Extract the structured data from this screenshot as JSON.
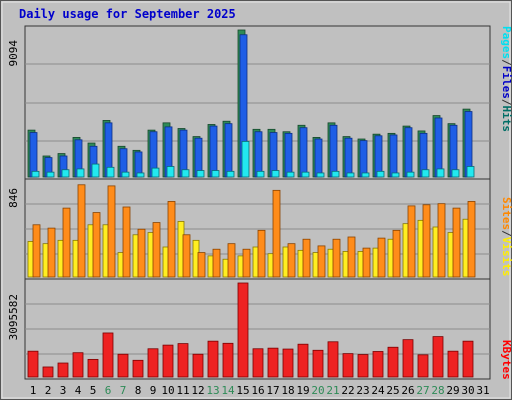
{
  "chart_data": {
    "type": "bar",
    "title": "Daily usage for September 2025",
    "days": [
      "1",
      "2",
      "3",
      "4",
      "5",
      "6",
      "7",
      "8",
      "9",
      "10",
      "11",
      "12",
      "13",
      "14",
      "15",
      "16",
      "17",
      "18",
      "19",
      "20",
      "21",
      "22",
      "23",
      "24",
      "25",
      "26",
      "27",
      "28",
      "29",
      "30",
      "31"
    ],
    "weekend_days": [
      "6",
      "7",
      "13",
      "14",
      "20",
      "21",
      "27",
      "28"
    ],
    "panels": [
      {
        "name": "hits-files-pages",
        "ymax_label": "9094",
        "ymax": 9094,
        "legend": [
          "Pages",
          "/",
          "Files",
          "/",
          "Hits"
        ],
        "legend_colors": [
          "#00e0f0",
          "#333333",
          "#0000c8",
          "#333333",
          "#006e66"
        ],
        "series": [
          {
            "name": "Hits",
            "color": "#2e8b57",
            "values": [
              2900,
              1300,
              1450,
              2450,
              2100,
              3500,
              1900,
              1650,
              2900,
              3350,
              3000,
              2500,
              3250,
              3450,
              9094,
              2950,
              2950,
              2800,
              3200,
              2450,
              3350,
              2500,
              2350,
              2650,
              2700,
              3150,
              2850,
              3800,
              3300,
              4200
            ]
          },
          {
            "name": "Files",
            "color": "#1f5ee6",
            "values": [
              2750,
              1200,
              1300,
              2300,
              1900,
              3350,
              1750,
              1550,
              2800,
              3100,
              2900,
              2400,
              3150,
              3300,
              8800,
              2800,
              2750,
              2700,
              3050,
              2350,
              3200,
              2400,
              2250,
              2550,
              2600,
              3050,
              2700,
              3650,
              3200,
              4050
            ]
          },
          {
            "name": "Pages",
            "color": "#22e8f0",
            "values": [
              350,
              300,
              450,
              500,
              800,
              600,
              300,
              250,
              550,
              650,
              450,
              400,
              400,
              350,
              2200,
              350,
              400,
              300,
              300,
              250,
              350,
              250,
              250,
              350,
              250,
              300,
              450,
              500,
              450,
              650
            ]
          }
        ]
      },
      {
        "name": "visits-sites",
        "ymax_label": "846",
        "ymax": 846,
        "legend": [
          "Sites",
          "/",
          "Visits"
        ],
        "legend_colors": [
          "#ff8800",
          "#333333",
          "#ffee00"
        ],
        "series": [
          {
            "name": "Visits",
            "color": "#ffee22",
            "values": [
              320,
              300,
              330,
              330,
              470,
              470,
              220,
              380,
              400,
              270,
              500,
              330,
              190,
              160,
              190,
              270,
              210,
              270,
              240,
              220,
              250,
              230,
              230,
              260,
              340,
              480,
              510,
              450,
              400,
              520
            ]
          },
          {
            "name": "Sites",
            "color": "#ff8c1a",
            "values": [
              470,
              440,
              620,
              830,
              580,
              820,
              630,
              430,
              490,
              680,
              380,
              220,
              250,
              300,
              250,
              420,
              780,
              300,
              340,
              280,
              340,
              360,
              260,
              350,
              420,
              640,
              650,
              660,
              620,
              680
            ]
          }
        ]
      },
      {
        "name": "kbytes",
        "ymax_label": "3095582",
        "ymax": 3095582,
        "legend": [
          "KBytes"
        ],
        "legend_colors": [
          "#ff0000"
        ],
        "series": [
          {
            "name": "KBytes",
            "color": "#ee2222",
            "values": [
              850000,
              330000,
              460000,
              800000,
              580000,
              1450000,
              750000,
              550000,
              930000,
              1050000,
              1100000,
              750000,
              1180000,
              1110000,
              3095582,
              930000,
              950000,
              920000,
              1080000,
              880000,
              1160000,
              770000,
              740000,
              840000,
              980000,
              1230000,
              730000,
              1330000,
              850000,
              1180000
            ]
          }
        ]
      }
    ]
  }
}
